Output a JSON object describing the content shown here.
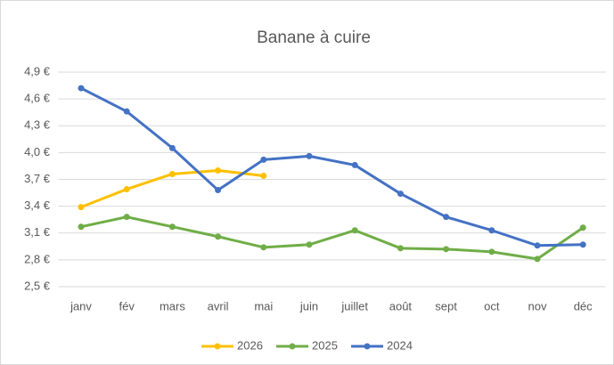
{
  "chart_data": {
    "type": "line",
    "title": "Banane à cuire",
    "categories": [
      "janv",
      "fév",
      "mars",
      "avril",
      "mai",
      "juin",
      "juillet",
      "août",
      "sept",
      "oct",
      "nov",
      "déc"
    ],
    "series": [
      {
        "name": "2026",
        "color": "#ffc000",
        "values": [
          3.39,
          3.59,
          3.76,
          3.8,
          3.74,
          null,
          null,
          null,
          null,
          null,
          null,
          null
        ]
      },
      {
        "name": "2025",
        "color": "#70ad47",
        "values": [
          3.17,
          3.28,
          3.17,
          3.06,
          2.94,
          2.97,
          3.13,
          2.93,
          2.92,
          2.89,
          2.81,
          3.16
        ]
      },
      {
        "name": "2024",
        "color": "#4472c4",
        "values": [
          4.72,
          4.46,
          4.05,
          3.58,
          3.92,
          3.96,
          3.86,
          3.54,
          3.28,
          3.13,
          2.96,
          2.97
        ]
      }
    ],
    "ylim": [
      2.5,
      4.9
    ],
    "yticks": [
      {
        "value": 2.5,
        "label": "2,5 €"
      },
      {
        "value": 2.8,
        "label": "2,8 €"
      },
      {
        "value": 3.1,
        "label": "3,1 €"
      },
      {
        "value": 3.4,
        "label": "3,4 €"
      },
      {
        "value": 3.7,
        "label": "3,7 €"
      },
      {
        "value": 4.0,
        "label": "4,0 €"
      },
      {
        "value": 4.3,
        "label": "4,3 €"
      },
      {
        "value": 4.6,
        "label": "4,6 €"
      },
      {
        "value": 4.9,
        "label": "4,9 €"
      }
    ],
    "grid": true,
    "legend": "bottom"
  }
}
